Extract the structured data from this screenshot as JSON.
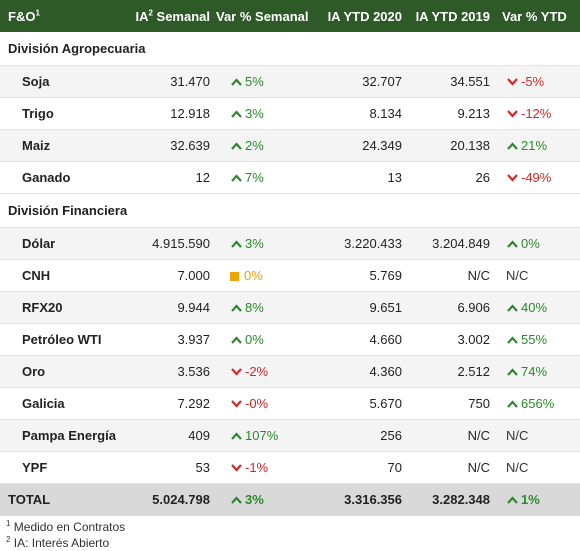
{
  "headers": {
    "col1": "F&O",
    "col1_sup": "1",
    "col2_pre": "IA",
    "col2_sup": "2",
    "col2_post": " Semanal",
    "col3": "Var % Semanal",
    "col4": "IA YTD 2020",
    "col5": "IA YTD 2019",
    "col6": "Var % YTD"
  },
  "sections": [
    {
      "title": "División Agropecuaria",
      "rows": [
        {
          "name": "Soja",
          "ia": "31.470",
          "var_sem": "5%",
          "var_sem_dir": "up",
          "ytd2020": "32.707",
          "ytd2019": "34.551",
          "var_ytd": "-5%",
          "var_ytd_dir": "down"
        },
        {
          "name": "Trigo",
          "ia": "12.918",
          "var_sem": "3%",
          "var_sem_dir": "up",
          "ytd2020": "8.134",
          "ytd2019": "9.213",
          "var_ytd": "-12%",
          "var_ytd_dir": "down"
        },
        {
          "name": "Maiz",
          "ia": "32.639",
          "var_sem": "2%",
          "var_sem_dir": "up",
          "ytd2020": "24.349",
          "ytd2019": "20.138",
          "var_ytd": "21%",
          "var_ytd_dir": "up"
        },
        {
          "name": "Ganado",
          "ia": "12",
          "var_sem": "7%",
          "var_sem_dir": "up",
          "ytd2020": "13",
          "ytd2019": "26",
          "var_ytd": "-49%",
          "var_ytd_dir": "down"
        }
      ]
    },
    {
      "title": "División Financiera",
      "rows": [
        {
          "name": "Dólar",
          "ia": "4.915.590",
          "var_sem": "3%",
          "var_sem_dir": "up",
          "ytd2020": "3.220.433",
          "ytd2019": "3.204.849",
          "var_ytd": "0%",
          "var_ytd_dir": "up"
        },
        {
          "name": "CNH",
          "ia": "7.000",
          "var_sem": "0%",
          "var_sem_dir": "flat",
          "ytd2020": "5.769",
          "ytd2019": "N/C",
          "var_ytd": "N/C",
          "var_ytd_dir": "none"
        },
        {
          "name": "RFX20",
          "ia": "9.944",
          "var_sem": "8%",
          "var_sem_dir": "up",
          "ytd2020": "9.651",
          "ytd2019": "6.906",
          "var_ytd": "40%",
          "var_ytd_dir": "up"
        },
        {
          "name": "Petróleo WTI",
          "ia": "3.937",
          "var_sem": "0%",
          "var_sem_dir": "up",
          "ytd2020": "4.660",
          "ytd2019": "3.002",
          "var_ytd": "55%",
          "var_ytd_dir": "up"
        },
        {
          "name": "Oro",
          "ia": "3.536",
          "var_sem": "-2%",
          "var_sem_dir": "down",
          "ytd2020": "4.360",
          "ytd2019": "2.512",
          "var_ytd": "74%",
          "var_ytd_dir": "up"
        },
        {
          "name": "Galicia",
          "ia": "7.292",
          "var_sem": "-0%",
          "var_sem_dir": "down",
          "ytd2020": "5.670",
          "ytd2019": "750",
          "var_ytd": "656%",
          "var_ytd_dir": "up"
        },
        {
          "name": "Pampa Energía",
          "ia": "409",
          "var_sem": "107%",
          "var_sem_dir": "up",
          "ytd2020": "256",
          "ytd2019": "N/C",
          "var_ytd": "N/C",
          "var_ytd_dir": "none"
        },
        {
          "name": "YPF",
          "ia": "53",
          "var_sem": "-1%",
          "var_sem_dir": "down",
          "ytd2020": "70",
          "ytd2019": "N/C",
          "var_ytd": "N/C",
          "var_ytd_dir": "none"
        }
      ]
    }
  ],
  "total": {
    "name": "TOTAL",
    "ia": "5.024.798",
    "var_sem": "3%",
    "var_sem_dir": "up",
    "ytd2020": "3.316.356",
    "ytd2019": "3.282.348",
    "var_ytd": "1%",
    "var_ytd_dir": "up"
  },
  "footnotes": [
    {
      "sup": "1",
      "text": " Medido en Contratos"
    },
    {
      "sup": "2",
      "text": " IA: Interés Abierto"
    }
  ],
  "colors": {
    "header_bg": "#2d5a26",
    "up": "#2a8a2a",
    "down": "#d22828",
    "flat": "#f0a400",
    "total_bg": "#d9d9d9"
  },
  "icons": {
    "up": "chevron-up-icon",
    "down": "chevron-down-icon",
    "flat": "square-icon"
  }
}
